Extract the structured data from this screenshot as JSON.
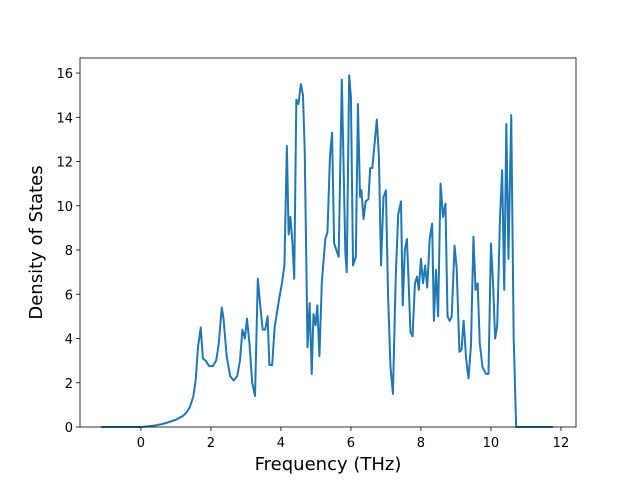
{
  "chart_data": {
    "type": "line",
    "xlabel": "Frequency (THz)",
    "ylabel": "Density of States",
    "x": [
      -1.14,
      0,
      0.2,
      0.4,
      0.6,
      0.8,
      1.0,
      1.2,
      1.3,
      1.4,
      1.5,
      1.57,
      1.63,
      1.71,
      1.77,
      1.85,
      1.95,
      2.05,
      2.15,
      2.22,
      2.31,
      2.36,
      2.45,
      2.55,
      2.65,
      2.75,
      2.83,
      2.9,
      2.97,
      3.03,
      3.1,
      3.18,
      3.26,
      3.34,
      3.42,
      3.48,
      3.55,
      3.62,
      3.67,
      3.75,
      3.82,
      3.95,
      4.03,
      4.1,
      4.17,
      4.22,
      4.27,
      4.33,
      4.38,
      4.44,
      4.5,
      4.57,
      4.63,
      4.68,
      4.76,
      4.82,
      4.88,
      4.93,
      4.99,
      5.04,
      5.1,
      5.17,
      5.27,
      5.33,
      5.4,
      5.46,
      5.52,
      5.65,
      5.74,
      5.84,
      5.88,
      5.95,
      6.0,
      6.06,
      6.14,
      6.2,
      6.26,
      6.3,
      6.36,
      6.42,
      6.5,
      6.55,
      6.61,
      6.74,
      6.8,
      6.86,
      6.93,
      7.0,
      7.06,
      7.13,
      7.2,
      7.28,
      7.35,
      7.43,
      7.48,
      7.54,
      7.6,
      7.65,
      7.7,
      7.76,
      7.83,
      7.89,
      7.94,
      8.0,
      8.06,
      8.12,
      8.18,
      8.25,
      8.32,
      8.37,
      8.43,
      8.49,
      8.56,
      8.63,
      8.7,
      8.76,
      8.82,
      8.88,
      8.96,
      9.02,
      9.1,
      9.16,
      9.22,
      9.29,
      9.36,
      9.43,
      9.5,
      9.56,
      9.62,
      9.68,
      9.76,
      9.86,
      9.93,
      10.0,
      10.06,
      10.12,
      10.18,
      10.26,
      10.32,
      10.38,
      10.44,
      10.5,
      10.58,
      10.65,
      10.72,
      11.77
    ],
    "values": [
      0,
      0,
      0.03,
      0.07,
      0.13,
      0.22,
      0.33,
      0.5,
      0.65,
      0.9,
      1.4,
      2.2,
      3.6,
      4.5,
      3.1,
      3.0,
      2.75,
      2.75,
      3.0,
      3.7,
      5.4,
      4.9,
      3.2,
      2.3,
      2.1,
      2.3,
      3.0,
      4.4,
      4.0,
      4.9,
      3.8,
      2.0,
      1.4,
      6.7,
      5.3,
      4.4,
      4.4,
      5.0,
      2.8,
      2.8,
      4.5,
      5.8,
      6.5,
      7.3,
      12.7,
      8.7,
      9.5,
      8.3,
      6.7,
      14.8,
      14.6,
      15.5,
      15.0,
      12.5,
      3.6,
      5.6,
      2.4,
      5.1,
      4.6,
      5.5,
      3.2,
      6.6,
      8.5,
      8.8,
      12.2,
      13.3,
      8.3,
      7.7,
      15.7,
      7.9,
      7.0,
      15.9,
      14.9,
      7.3,
      7.7,
      14.6,
      10.4,
      10.7,
      9.4,
      10.2,
      10.3,
      11.7,
      11.7,
      13.9,
      12.2,
      7.3,
      10.4,
      10.7,
      6.0,
      2.7,
      1.5,
      6.8,
      9.6,
      10.2,
      5.5,
      8.0,
      8.5,
      6.5,
      4.3,
      4.1,
      6.5,
      6.8,
      6.2,
      7.6,
      6.5,
      7.3,
      6.3,
      8.5,
      9.2,
      4.8,
      7.1,
      5.0,
      11.0,
      9.5,
      10.1,
      5.0,
      4.8,
      5.0,
      8.2,
      7.2,
      3.4,
      3.5,
      4.8,
      3.1,
      2.2,
      3.7,
      8.6,
      6.2,
      6.5,
      3.8,
      2.7,
      2.4,
      2.4,
      8.3,
      6.5,
      4.0,
      4.6,
      9.5,
      11.6,
      6.2,
      13.7,
      7.6,
      14.1,
      4.0,
      0,
      0
    ],
    "color": "#1f77b4",
    "xlim": [
      -1.74,
      12.43
    ],
    "ylim": [
      0,
      16.68
    ],
    "xticks": [
      0,
      2,
      4,
      6,
      8,
      10,
      12
    ],
    "yticks": [
      0,
      2,
      4,
      6,
      8,
      10,
      12,
      14,
      16
    ]
  }
}
